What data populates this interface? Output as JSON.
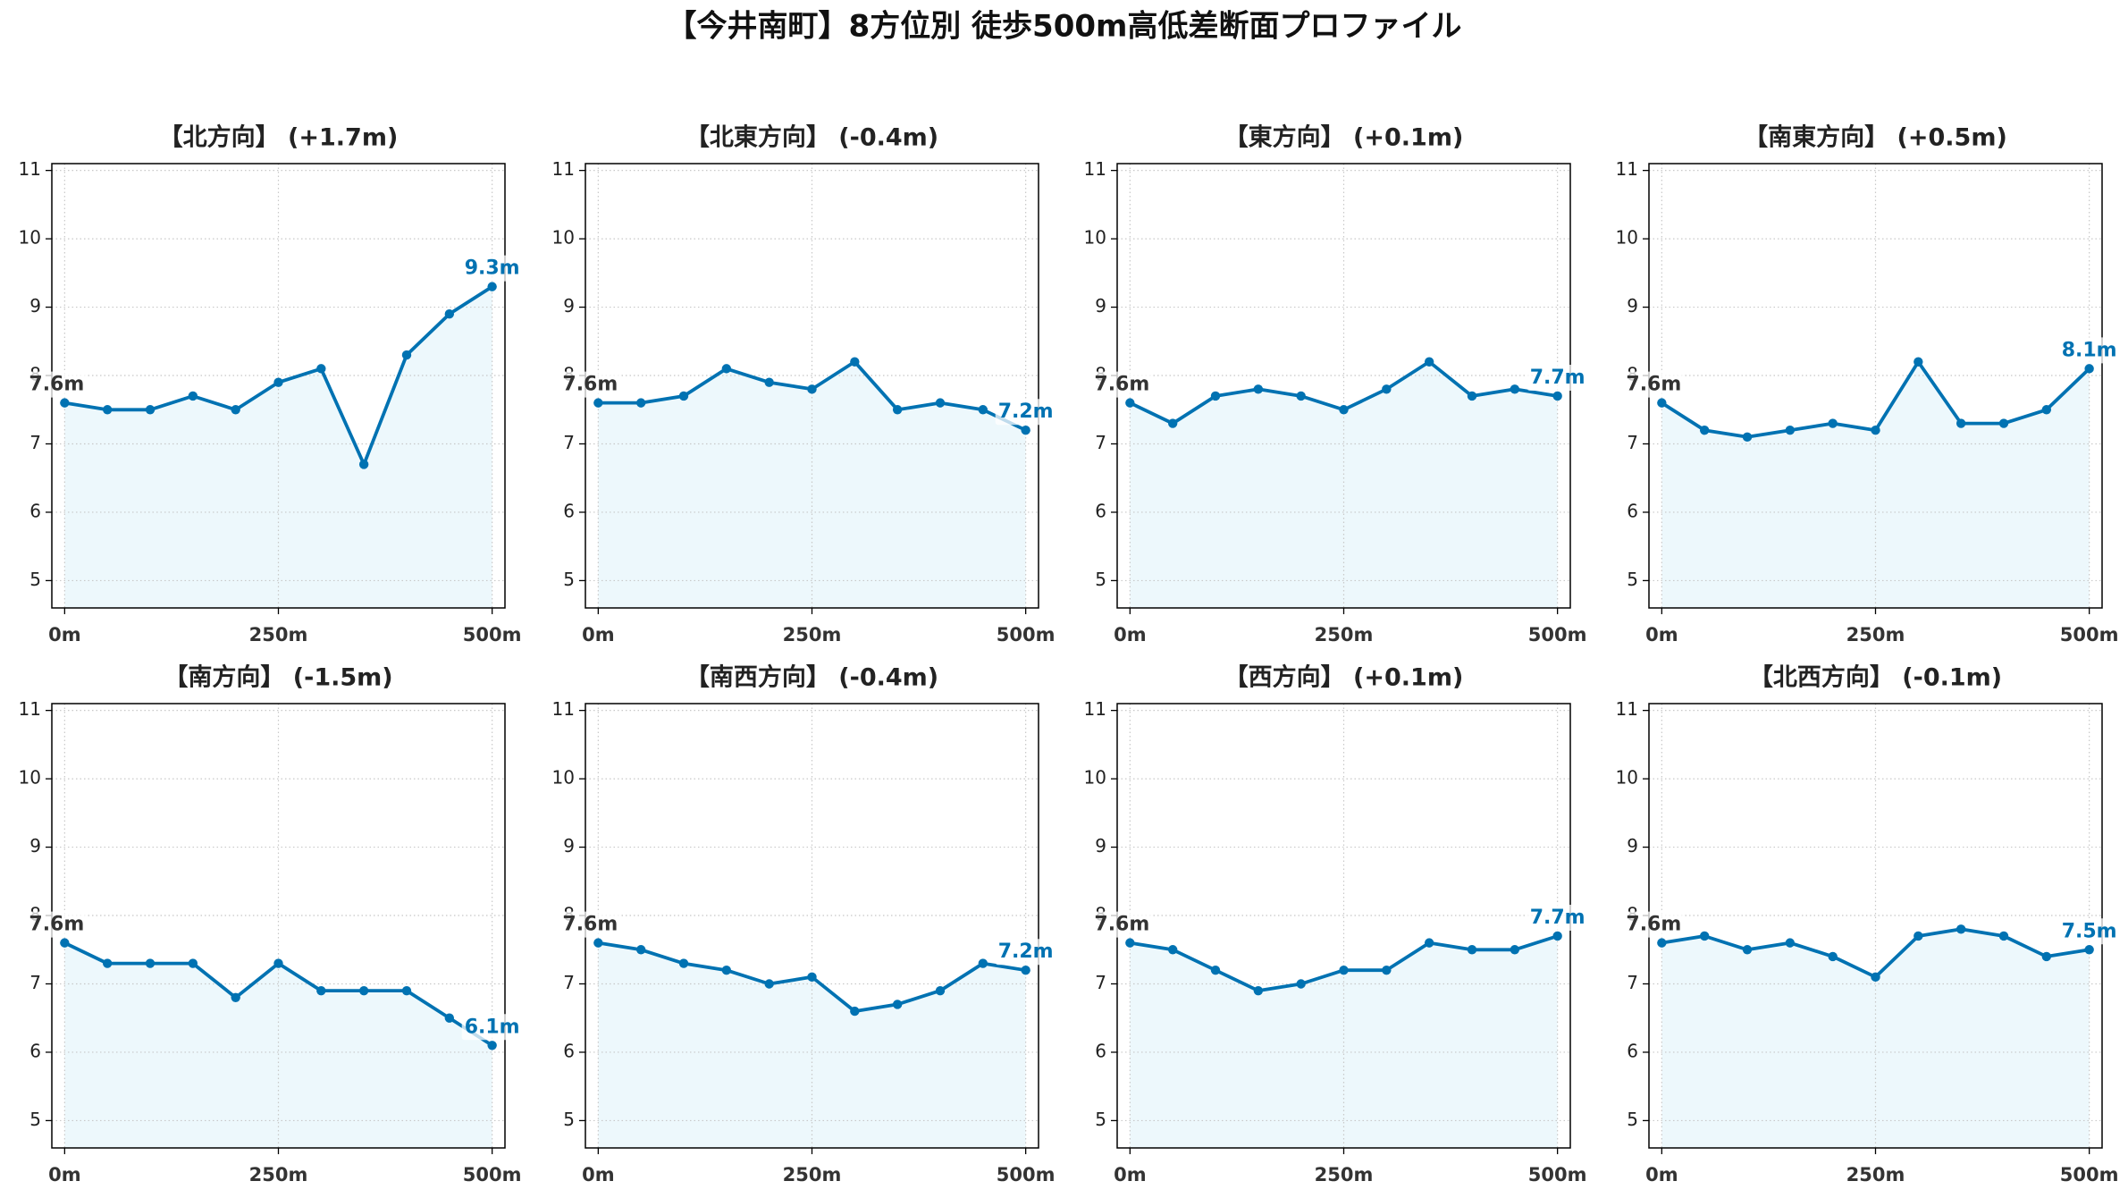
{
  "figure_title": "【今井南町】8方位別 徒歩500m高低差断面プロファイル",
  "colors": {
    "line": "#0072B2",
    "marker": "#0072B2",
    "fill": "#EDF8FC",
    "start_label": "#333333",
    "end_label": "#0072B2",
    "grid": "#C8C8C8"
  },
  "chart_data": [
    {
      "type": "line",
      "title": "【北方向】 (+1.7m)",
      "x": [
        0,
        50,
        100,
        150,
        200,
        250,
        300,
        350,
        400,
        450,
        500
      ],
      "values": [
        7.6,
        7.5,
        7.5,
        7.7,
        7.5,
        7.9,
        8.1,
        6.7,
        8.3,
        8.9,
        9.3
      ],
      "start_label": "7.6m",
      "end_label": "9.3m",
      "xticks": [
        0,
        250,
        500
      ],
      "xtick_labels": [
        "0m",
        "250m",
        "500m"
      ],
      "yticks": [
        5,
        6,
        7,
        8,
        9,
        10,
        11
      ],
      "ytick_labels": [
        "5",
        "6",
        "7",
        "8",
        "9",
        "10",
        "11"
      ],
      "xlim": [
        -15,
        515
      ],
      "ylim": [
        4.6,
        11.1
      ],
      "grid": true,
      "area_fill": true
    },
    {
      "type": "line",
      "title": "【北東方向】 (-0.4m)",
      "x": [
        0,
        50,
        100,
        150,
        200,
        250,
        300,
        350,
        400,
        450,
        500
      ],
      "values": [
        7.6,
        7.6,
        7.7,
        8.1,
        7.9,
        7.8,
        8.2,
        7.5,
        7.6,
        7.5,
        7.2
      ],
      "start_label": "7.6m",
      "end_label": "7.2m",
      "xticks": [
        0,
        250,
        500
      ],
      "xtick_labels": [
        "0m",
        "250m",
        "500m"
      ],
      "yticks": [
        5,
        6,
        7,
        8,
        9,
        10,
        11
      ],
      "ytick_labels": [
        "5",
        "6",
        "7",
        "8",
        "9",
        "10",
        "11"
      ],
      "xlim": [
        -15,
        515
      ],
      "ylim": [
        4.6,
        11.1
      ],
      "grid": true,
      "area_fill": true
    },
    {
      "type": "line",
      "title": "【東方向】 (+0.1m)",
      "x": [
        0,
        50,
        100,
        150,
        200,
        250,
        300,
        350,
        400,
        450,
        500
      ],
      "values": [
        7.6,
        7.3,
        7.7,
        7.8,
        7.7,
        7.5,
        7.8,
        8.2,
        7.7,
        7.8,
        7.7
      ],
      "start_label": "7.6m",
      "end_label": "7.7m",
      "xticks": [
        0,
        250,
        500
      ],
      "xtick_labels": [
        "0m",
        "250m",
        "500m"
      ],
      "yticks": [
        5,
        6,
        7,
        8,
        9,
        10,
        11
      ],
      "ytick_labels": [
        "5",
        "6",
        "7",
        "8",
        "9",
        "10",
        "11"
      ],
      "xlim": [
        -15,
        515
      ],
      "ylim": [
        4.6,
        11.1
      ],
      "grid": true,
      "area_fill": true
    },
    {
      "type": "line",
      "title": "【南東方向】 (+0.5m)",
      "x": [
        0,
        50,
        100,
        150,
        200,
        250,
        300,
        350,
        400,
        450,
        500
      ],
      "values": [
        7.6,
        7.2,
        7.1,
        7.2,
        7.3,
        7.2,
        8.2,
        7.3,
        7.3,
        7.5,
        8.1
      ],
      "start_label": "7.6m",
      "end_label": "8.1m",
      "xticks": [
        0,
        250,
        500
      ],
      "xtick_labels": [
        "0m",
        "250m",
        "500m"
      ],
      "yticks": [
        5,
        6,
        7,
        8,
        9,
        10,
        11
      ],
      "ytick_labels": [
        "5",
        "6",
        "7",
        "8",
        "9",
        "10",
        "11"
      ],
      "xlim": [
        -15,
        515
      ],
      "ylim": [
        4.6,
        11.1
      ],
      "grid": true,
      "area_fill": true
    },
    {
      "type": "line",
      "title": "【南方向】 (-1.5m)",
      "x": [
        0,
        50,
        100,
        150,
        200,
        250,
        300,
        350,
        400,
        450,
        500
      ],
      "values": [
        7.6,
        7.3,
        7.3,
        7.3,
        6.8,
        7.3,
        6.9,
        6.9,
        6.9,
        6.5,
        6.1
      ],
      "start_label": "7.6m",
      "end_label": "6.1m",
      "xticks": [
        0,
        250,
        500
      ],
      "xtick_labels": [
        "0m",
        "250m",
        "500m"
      ],
      "yticks": [
        5,
        6,
        7,
        8,
        9,
        10,
        11
      ],
      "ytick_labels": [
        "5",
        "6",
        "7",
        "8",
        "9",
        "10",
        "11"
      ],
      "xlim": [
        -15,
        515
      ],
      "ylim": [
        4.6,
        11.1
      ],
      "grid": true,
      "area_fill": true
    },
    {
      "type": "line",
      "title": "【南西方向】 (-0.4m)",
      "x": [
        0,
        50,
        100,
        150,
        200,
        250,
        300,
        350,
        400,
        450,
        500
      ],
      "values": [
        7.6,
        7.5,
        7.3,
        7.2,
        7.0,
        7.1,
        6.6,
        6.7,
        6.9,
        7.3,
        7.2
      ],
      "start_label": "7.6m",
      "end_label": "7.2m",
      "xticks": [
        0,
        250,
        500
      ],
      "xtick_labels": [
        "0m",
        "250m",
        "500m"
      ],
      "yticks": [
        5,
        6,
        7,
        8,
        9,
        10,
        11
      ],
      "ytick_labels": [
        "5",
        "6",
        "7",
        "8",
        "9",
        "10",
        "11"
      ],
      "xlim": [
        -15,
        515
      ],
      "ylim": [
        4.6,
        11.1
      ],
      "grid": true,
      "area_fill": true
    },
    {
      "type": "line",
      "title": "【西方向】 (+0.1m)",
      "x": [
        0,
        50,
        100,
        150,
        200,
        250,
        300,
        350,
        400,
        450,
        500
      ],
      "values": [
        7.6,
        7.5,
        7.2,
        6.9,
        7.0,
        7.2,
        7.2,
        7.6,
        7.5,
        7.5,
        7.7
      ],
      "start_label": "7.6m",
      "end_label": "7.7m",
      "xticks": [
        0,
        250,
        500
      ],
      "xtick_labels": [
        "0m",
        "250m",
        "500m"
      ],
      "yticks": [
        5,
        6,
        7,
        8,
        9,
        10,
        11
      ],
      "ytick_labels": [
        "5",
        "6",
        "7",
        "8",
        "9",
        "10",
        "11"
      ],
      "xlim": [
        -15,
        515
      ],
      "ylim": [
        4.6,
        11.1
      ],
      "grid": true,
      "area_fill": true
    },
    {
      "type": "line",
      "title": "【北西方向】 (-0.1m)",
      "x": [
        0,
        50,
        100,
        150,
        200,
        250,
        300,
        350,
        400,
        450,
        500
      ],
      "values": [
        7.6,
        7.7,
        7.5,
        7.6,
        7.4,
        7.1,
        7.7,
        7.8,
        7.7,
        7.4,
        7.5
      ],
      "start_label": "7.6m",
      "end_label": "7.5m",
      "xticks": [
        0,
        250,
        500
      ],
      "xtick_labels": [
        "0m",
        "250m",
        "500m"
      ],
      "yticks": [
        5,
        6,
        7,
        8,
        9,
        10,
        11
      ],
      "ytick_labels": [
        "5",
        "6",
        "7",
        "8",
        "9",
        "10",
        "11"
      ],
      "xlim": [
        -15,
        515
      ],
      "ylim": [
        4.6,
        11.1
      ],
      "grid": true,
      "area_fill": true
    }
  ]
}
